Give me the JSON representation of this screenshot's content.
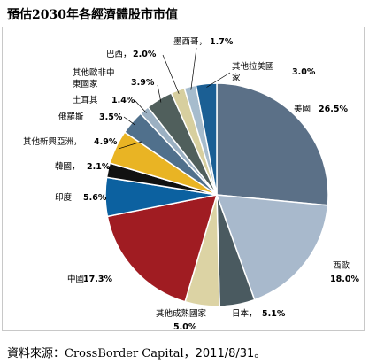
{
  "chart_data": {
    "type": "pie",
    "title": "預估2030年各經濟體股市市值",
    "slices": [
      {
        "label": "美國",
        "percent": "26.5%",
        "value": 26.5,
        "color": "#5b7087"
      },
      {
        "label": "西歐",
        "percent": "18.0%",
        "value": 18.0,
        "color": "#a8b9cc"
      },
      {
        "label": "日本，",
        "percent": "5.1%",
        "value": 5.1,
        "color": "#4a5a60"
      },
      {
        "label": "其他成熟國家",
        "percent": "5.0%",
        "value": 5.0,
        "color": "#dcd3a4"
      },
      {
        "label": "中國",
        "percent": "17.3%",
        "value": 17.3,
        "color": "#a01c22"
      },
      {
        "label": "印度",
        "percent": "5.6%",
        "value": 5.6,
        "color": "#0c61a0"
      },
      {
        "label": "韓國，",
        "percent": "2.1%",
        "value": 2.1,
        "color": "#111111"
      },
      {
        "label": "其他新興亞洲，",
        "percent": "4.9%",
        "value": 4.9,
        "color": "#e9b424"
      },
      {
        "label": "俄羅斯",
        "percent": "3.5%",
        "value": 3.5,
        "color": "#50708c"
      },
      {
        "label": "土耳其",
        "percent": "1.4%",
        "value": 1.4,
        "color": "#9bb0c2"
      },
      {
        "label": "其他歐非中東國家",
        "percent": "3.9%",
        "value": 3.9,
        "color": "#505f5c"
      },
      {
        "label": "巴西，",
        "percent": "2.0%",
        "value": 2.0,
        "color": "#d7cf9f"
      },
      {
        "label": "墨西哥，",
        "percent": "1.7%",
        "value": 1.7,
        "color": "#a6bccd"
      },
      {
        "label": "其他拉美國家",
        "percent": "3.0%",
        "value": 3.0,
        "color": "#1b5f94"
      }
    ]
  },
  "source": {
    "prefix": "資料來源：",
    "brand": "CrossBorder Capital",
    "suffix": "，2011/8/31。"
  }
}
